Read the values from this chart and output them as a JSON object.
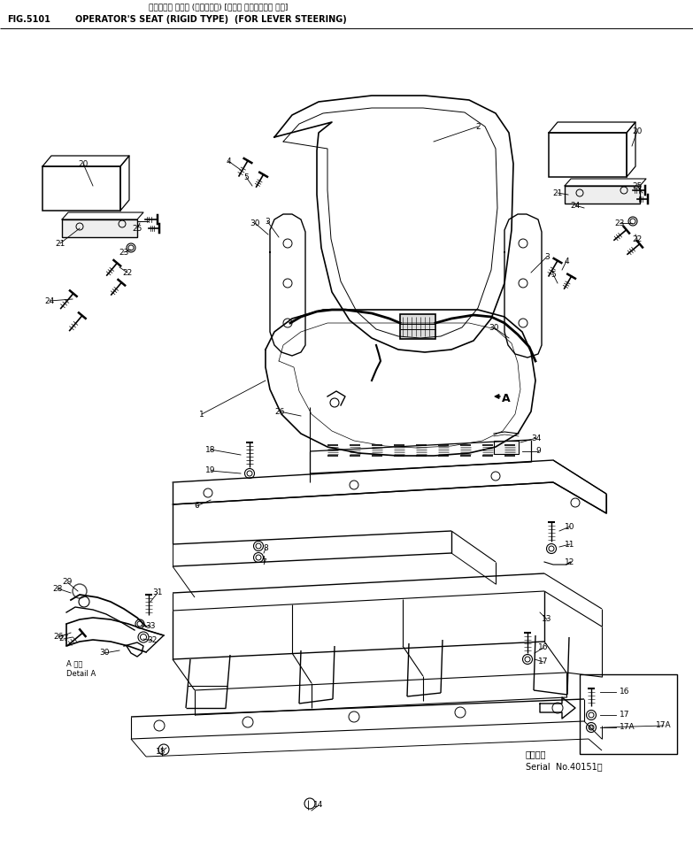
{
  "title_line1": "オペレータ シート (コチイスキ) [レバー ステアリング ヨウ]",
  "title_line2": "OPERATOR'S SEAT (RIGID TYPE)  (FOR LEVER STEERING)",
  "fig_label": "FIG.5101",
  "serial_jp": "適用号機",
  "serial_en": "Serial  No.40151～",
  "detail_jp": "A 詳細",
  "detail_en": "Detail A",
  "bg_color": "#ffffff"
}
